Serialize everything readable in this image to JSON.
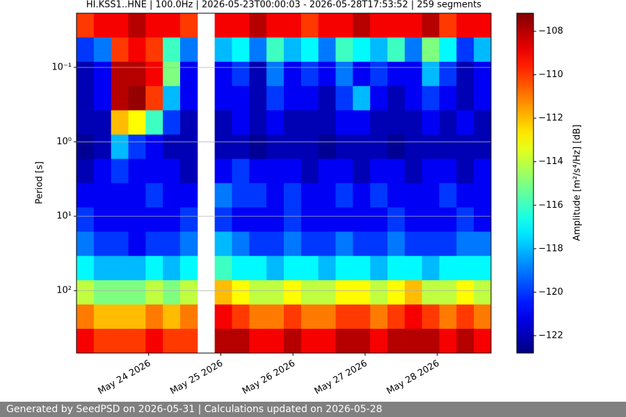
{
  "chart_data": {
    "type": "heatmap",
    "title": "HI.KSS1..HNE | 100.0Hz | 2026-05-23T00:00:03 - 2026-05-28T17:53:52 | 259 segments",
    "ylabel": "Period [s]",
    "colorbar_label": "Amplitude [m²/s⁴/Hz] [dB]",
    "colormap": "jet",
    "grid": true,
    "ylog": true,
    "y_inverted": true,
    "xlim": [
      "2026-05-23T00:00:03",
      "2026-05-28T17:53:52"
    ],
    "xticks": [
      {
        "value": "2026-05-24T00:00:00",
        "label": "May 24 2026"
      },
      {
        "value": "2026-05-25T00:00:00",
        "label": "May 25 2026"
      },
      {
        "value": "2026-05-26T00:00:00",
        "label": "May 26 2026"
      },
      {
        "value": "2026-05-27T00:00:00",
        "label": "May 27 2026"
      },
      {
        "value": "2026-05-28T00:00:00",
        "label": "May 28 2026"
      }
    ],
    "ylim": [
      0.0187,
      690
    ],
    "yticks": [
      {
        "value": 0.1,
        "label": "10⁻¹"
      },
      {
        "value": 1,
        "label": "10⁰"
      },
      {
        "value": 10,
        "label": "10¹"
      },
      {
        "value": 100,
        "label": "10²"
      }
    ],
    "clim": [
      -122.8,
      -107.17
    ],
    "cticks": [
      {
        "value": -108,
        "label": "−108"
      },
      {
        "value": -110,
        "label": "−110"
      },
      {
        "value": -112,
        "label": "−112"
      },
      {
        "value": -114,
        "label": "−114"
      },
      {
        "value": -116,
        "label": "−116"
      },
      {
        "value": -118,
        "label": "−118"
      },
      {
        "value": -120,
        "label": "−120"
      },
      {
        "value": -122,
        "label": "−122"
      }
    ],
    "values": [
      [
        -110,
        -109,
        -109,
        -108,
        -109,
        -109,
        -110,
        null,
        -109,
        -109,
        -108,
        -109,
        -109,
        -110,
        -109,
        -109,
        -108,
        -109,
        -109,
        -109,
        -108,
        -110,
        -109,
        -109
      ],
      [
        -120,
        -119,
        -110,
        -109,
        -110,
        -116,
        -119,
        null,
        -118,
        -117,
        -119,
        -116,
        -118,
        -117,
        -119,
        -116,
        -117,
        -118,
        -116,
        -119,
        -115,
        -117,
        -120,
        -118
      ],
      [
        -122,
        -121,
        -108,
        -108,
        -109,
        -115,
        -121,
        null,
        -121,
        -120,
        -122,
        -119,
        -121,
        -120,
        -121,
        -119,
        -121,
        -120,
        -121,
        -121,
        -118,
        -120,
        -122,
        -121
      ],
      [
        -122,
        -121,
        -108,
        -107.5,
        -110,
        -118,
        -121,
        null,
        -121,
        -121,
        -122,
        -120,
        -121,
        -121,
        -122,
        -120,
        -118,
        -121,
        -122,
        -121,
        -120,
        -121,
        -122,
        -121
      ],
      [
        -122,
        -122,
        -112,
        -113,
        -116,
        -120,
        -122,
        null,
        -122,
        -121,
        -122,
        -121,
        -122,
        -122,
        -122,
        -121,
        -121,
        -122,
        -122,
        -122,
        -121,
        -122,
        -121,
        -122
      ],
      [
        -122.5,
        -122,
        -118,
        -120,
        -121,
        -122,
        -122,
        null,
        -122,
        -122,
        -122.5,
        -122,
        -122,
        -122,
        -122.5,
        -122,
        -122,
        -122,
        -122.5,
        -122,
        -122,
        -122,
        -122,
        -122
      ],
      [
        -122,
        -121,
        -120,
        -121,
        -121,
        -121,
        -122,
        null,
        -121,
        -120,
        -121,
        -121,
        -121,
        -122,
        -121,
        -121,
        -122,
        -121,
        -121,
        -122,
        -121,
        -121,
        -122,
        -121
      ],
      [
        -121,
        -121,
        -121,
        -121,
        -120,
        -121,
        -121,
        null,
        -119,
        -120,
        -120,
        -121,
        -120,
        -121,
        -121,
        -120,
        -121,
        -120,
        -121,
        -121,
        -121,
        -120,
        -121,
        -121
      ],
      [
        -120,
        -121,
        -121,
        -121,
        -121,
        -121,
        -120,
        null,
        -120,
        -121,
        -121,
        -121,
        -120,
        -121,
        -121,
        -121,
        -121,
        -121,
        -120,
        -121,
        -121,
        -121,
        -120,
        -121
      ],
      [
        -119,
        -120,
        -120,
        -121,
        -120,
        -120,
        -119,
        null,
        -118,
        -119,
        -120,
        -120,
        -119,
        -120,
        -120,
        -119,
        -120,
        -120,
        -119,
        -120,
        -120,
        -120,
        -119,
        -119
      ],
      [
        -117,
        -118,
        -118,
        -118,
        -117,
        -118,
        -117,
        null,
        -116,
        -117,
        -117,
        -118,
        -117,
        -117,
        -118,
        -117,
        -117,
        -118,
        -117,
        -117,
        -118,
        -117,
        -117,
        -117
      ],
      [
        -114,
        -115,
        -115,
        -115,
        -114,
        -115,
        -114,
        null,
        -112,
        -113,
        -114,
        -114,
        -113,
        -114,
        -114,
        -113,
        -113,
        -114,
        -113,
        -112,
        -114,
        -114,
        -113,
        -114
      ],
      [
        -111,
        -112,
        -112,
        -112,
        -111,
        -112,
        -111,
        null,
        -109,
        -110,
        -111,
        -111,
        -110,
        -111,
        -111,
        -110,
        -110,
        -111,
        -110,
        -109,
        -110,
        -111,
        -110,
        -111
      ],
      [
        -109,
        -110,
        -110,
        -110,
        -109,
        -110,
        -110,
        null,
        -108,
        -108,
        -109,
        -109,
        -108,
        -109,
        -109,
        -108,
        -108,
        -109,
        -108,
        -108,
        -108,
        -109,
        -108,
        -109
      ]
    ]
  },
  "footer": "Generated by SeedPSD on 2026-05-31 | Calculations updated on 2026-05-28"
}
